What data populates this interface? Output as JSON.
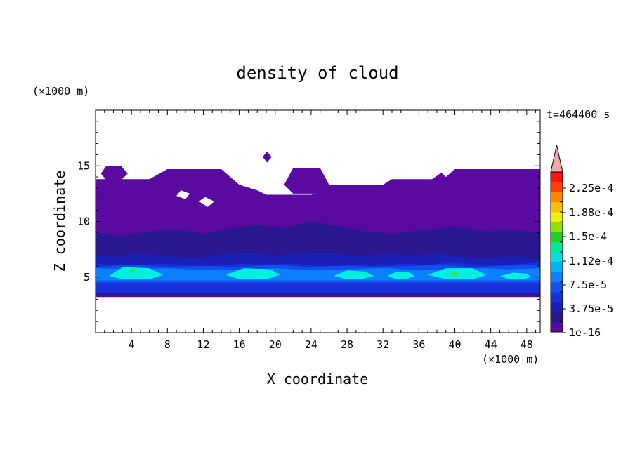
{
  "chart_data": {
    "type": "heatmap",
    "title": "density of cloud",
    "xlabel": "X coordinate",
    "ylabel": "Z coordinate",
    "x_unit": "(×1000 m)",
    "y_unit": "(×1000 m)",
    "time_label": "t=464400 s",
    "xlim": [
      0,
      49.5
    ],
    "ylim": [
      0,
      20
    ],
    "x_ticks": [
      4,
      8,
      12,
      16,
      20,
      24,
      28,
      32,
      36,
      40,
      44,
      48
    ],
    "y_ticks": [
      5,
      10,
      15
    ],
    "colorbar": {
      "labels": [
        {
          "value": 0.000225,
          "text": "2.25e-4"
        },
        {
          "value": 0.000188,
          "text": "1.88e-4"
        },
        {
          "value": 0.00015,
          "text": "1.5e-4"
        },
        {
          "value": 0.000112,
          "text": "1.12e-4"
        },
        {
          "value": 7.5e-05,
          "text": "7.5e-5"
        },
        {
          "value": 3.75e-05,
          "text": "3.75e-5"
        },
        {
          "value": 1e-16,
          "text": "1e-16"
        }
      ],
      "colors": [
        "#5a0aa0",
        "#2a1890",
        "#1a20b8",
        "#1830d8",
        "#1050f0",
        "#0a80ff",
        "#00b0ff",
        "#00e0e0",
        "#00e898",
        "#20d020",
        "#90e000",
        "#f0f000",
        "#ffc000",
        "#ff8800",
        "#ff4000",
        "#ff1010"
      ],
      "overflow_color": "#f4a6a6"
    },
    "layers": [
      {
        "level": "1e-16",
        "polygon": [
          [
            0,
            3.2
          ],
          [
            49.5,
            3.2
          ],
          [
            49.5,
            14.7
          ],
          [
            46,
            14.7
          ],
          [
            44,
            14.7
          ],
          [
            40,
            14.7
          ],
          [
            39,
            14
          ],
          [
            38.5,
            14.4
          ],
          [
            37.5,
            13.8
          ],
          [
            33,
            13.8
          ],
          [
            32,
            13.3
          ],
          [
            26,
            13.3
          ],
          [
            25,
            12.6
          ],
          [
            24,
            12.4
          ],
          [
            19,
            12.4
          ],
          [
            18,
            12.8
          ],
          [
            16,
            13.3
          ],
          [
            14,
            14.7
          ],
          [
            8,
            14.7
          ],
          [
            6,
            13.8
          ],
          [
            0,
            13.8
          ]
        ],
        "patches": [
          [
            [
              0.6,
              14.3
            ],
            [
              1.2,
              15
            ],
            [
              2.8,
              15
            ],
            [
              3.6,
              14.3
            ],
            [
              2.8,
              13.7
            ],
            [
              1.2,
              13.7
            ]
          ],
          [
            [
              21,
              13.3
            ],
            [
              22,
              14.8
            ],
            [
              25,
              14.8
            ],
            [
              26,
              13.3
            ],
            [
              25,
              12.5
            ],
            [
              22,
              12.5
            ]
          ],
          [
            [
              18.6,
              15.8
            ],
            [
              19.1,
              16.3
            ],
            [
              19.6,
              15.8
            ],
            [
              19.1,
              15.3
            ]
          ]
        ],
        "holes": [
          [
            [
              9,
              12.3
            ],
            [
              9.5,
              12.8
            ],
            [
              10.5,
              12.5
            ],
            [
              10,
              12
            ]
          ],
          [
            [
              11.5,
              11.8
            ],
            [
              12.2,
              12.2
            ],
            [
              13.2,
              11.8
            ],
            [
              12.5,
              11.3
            ]
          ]
        ]
      },
      {
        "level": "3.75e-5 low",
        "polygon": [
          [
            0,
            3.3
          ],
          [
            49.5,
            3.3
          ],
          [
            49.5,
            9
          ],
          [
            46,
            9.3
          ],
          [
            44,
            9.1
          ],
          [
            40,
            9.5
          ],
          [
            36,
            9.2
          ],
          [
            33,
            8.9
          ],
          [
            30,
            9.1
          ],
          [
            27,
            9.6
          ],
          [
            24,
            10
          ],
          [
            21,
            9.4
          ],
          [
            18,
            9.7
          ],
          [
            15,
            9.4
          ],
          [
            12,
            8.9
          ],
          [
            9,
            9.3
          ],
          [
            6,
            9.1
          ],
          [
            3,
            8.7
          ],
          [
            0,
            8.9
          ]
        ]
      },
      {
        "level": "3.75e-5 mid",
        "polygon": [
          [
            0,
            3.5
          ],
          [
            49.5,
            3.5
          ],
          [
            49.5,
            6.5
          ],
          [
            47,
            6.9
          ],
          [
            44,
            6.7
          ],
          [
            41,
            6.8
          ],
          [
            38,
            7.1
          ],
          [
            35,
            6.9
          ],
          [
            32,
            7.1
          ],
          [
            29,
            6.8
          ],
          [
            26,
            7.2
          ],
          [
            23,
            7.1
          ],
          [
            20,
            6.9
          ],
          [
            17,
            7.2
          ],
          [
            14,
            7
          ],
          [
            11,
            6.7
          ],
          [
            8,
            6.9
          ],
          [
            5,
            7.1
          ],
          [
            2,
            6.8
          ],
          [
            0,
            6.9
          ]
        ]
      },
      {
        "level": "3.75e-5 high",
        "polygon": [
          [
            0,
            3.6
          ],
          [
            49.5,
            3.6
          ],
          [
            49.5,
            6.3
          ],
          [
            46,
            6.1
          ],
          [
            43,
            6
          ],
          [
            40,
            6.3
          ],
          [
            37,
            6.1
          ],
          [
            34,
            6.2
          ],
          [
            31,
            6
          ],
          [
            28,
            6.1
          ],
          [
            25,
            6
          ],
          [
            22,
            6.2
          ],
          [
            19,
            6.1
          ],
          [
            16,
            6.2
          ],
          [
            13,
            6
          ],
          [
            10,
            6.1
          ],
          [
            7,
            6.2
          ],
          [
            4,
            6
          ],
          [
            0,
            6.2
          ]
        ]
      },
      {
        "level": "7.5e-5 low",
        "polygon": [
          [
            0,
            4.5
          ],
          [
            49.5,
            4.5
          ],
          [
            49.5,
            6.1
          ],
          [
            45,
            6
          ],
          [
            42,
            5.9
          ],
          [
            38,
            6.1
          ],
          [
            35,
            6
          ],
          [
            31,
            5.9
          ],
          [
            28,
            6
          ],
          [
            24,
            5.9
          ],
          [
            20,
            6.1
          ],
          [
            16,
            5.9
          ],
          [
            12,
            6
          ],
          [
            8,
            5.9
          ],
          [
            4,
            6.1
          ],
          [
            0,
            5.9
          ]
        ]
      },
      {
        "level": "7.5e-5 high",
        "polygon": [
          [
            0,
            4.7
          ],
          [
            49.5,
            4.7
          ],
          [
            49.5,
            5.8
          ],
          [
            46,
            5.7
          ],
          [
            43,
            5.8
          ],
          [
            40,
            5.7
          ],
          [
            36,
            5.6
          ],
          [
            32,
            5.8
          ],
          [
            28,
            5.7
          ],
          [
            24,
            5.6
          ],
          [
            20,
            5.8
          ],
          [
            16,
            5.7
          ],
          [
            12,
            5.6
          ],
          [
            8,
            5.8
          ],
          [
            4,
            5.7
          ],
          [
            0,
            5.8
          ]
        ]
      },
      {
        "level": "1.12e-4",
        "patches": [
          [
            [
              1.5,
              5.1
            ],
            [
              3,
              5.9
            ],
            [
              6,
              5.8
            ],
            [
              7.5,
              5.2
            ],
            [
              6,
              4.8
            ],
            [
              3,
              4.8
            ]
          ],
          [
            [
              14.5,
              5.2
            ],
            [
              16.5,
              5.8
            ],
            [
              19.5,
              5.7
            ],
            [
              20.5,
              5.2
            ],
            [
              19,
              4.8
            ],
            [
              16,
              4.8
            ]
          ],
          [
            [
              26.5,
              5.1
            ],
            [
              28,
              5.6
            ],
            [
              30,
              5.5
            ],
            [
              31,
              5.1
            ],
            [
              29.5,
              4.8
            ],
            [
              28,
              4.8
            ]
          ],
          [
            [
              32.5,
              5.1
            ],
            [
              33.5,
              5.5
            ],
            [
              35,
              5.4
            ],
            [
              35.5,
              5.1
            ],
            [
              34.5,
              4.8
            ],
            [
              33.5,
              4.8
            ]
          ],
          [
            [
              37,
              5.2
            ],
            [
              39,
              5.8
            ],
            [
              42,
              5.8
            ],
            [
              43.5,
              5.2
            ],
            [
              42,
              4.8
            ],
            [
              39,
              4.8
            ]
          ],
          [
            [
              45,
              5.1
            ],
            [
              46.5,
              5.4
            ],
            [
              48,
              5.3
            ],
            [
              48.5,
              5
            ],
            [
              47.5,
              4.8
            ],
            [
              46,
              4.8
            ]
          ]
        ]
      },
      {
        "level": "1.5e-4",
        "patches": [
          [
            [
              3.7,
              5.6
            ],
            [
              4.1,
              5.8
            ],
            [
              4.5,
              5.6
            ],
            [
              4.1,
              5.4
            ]
          ],
          [
            [
              39.5,
              5.3
            ],
            [
              40,
              5.5
            ],
            [
              40.5,
              5.3
            ],
            [
              40,
              5.1
            ]
          ]
        ]
      }
    ]
  }
}
